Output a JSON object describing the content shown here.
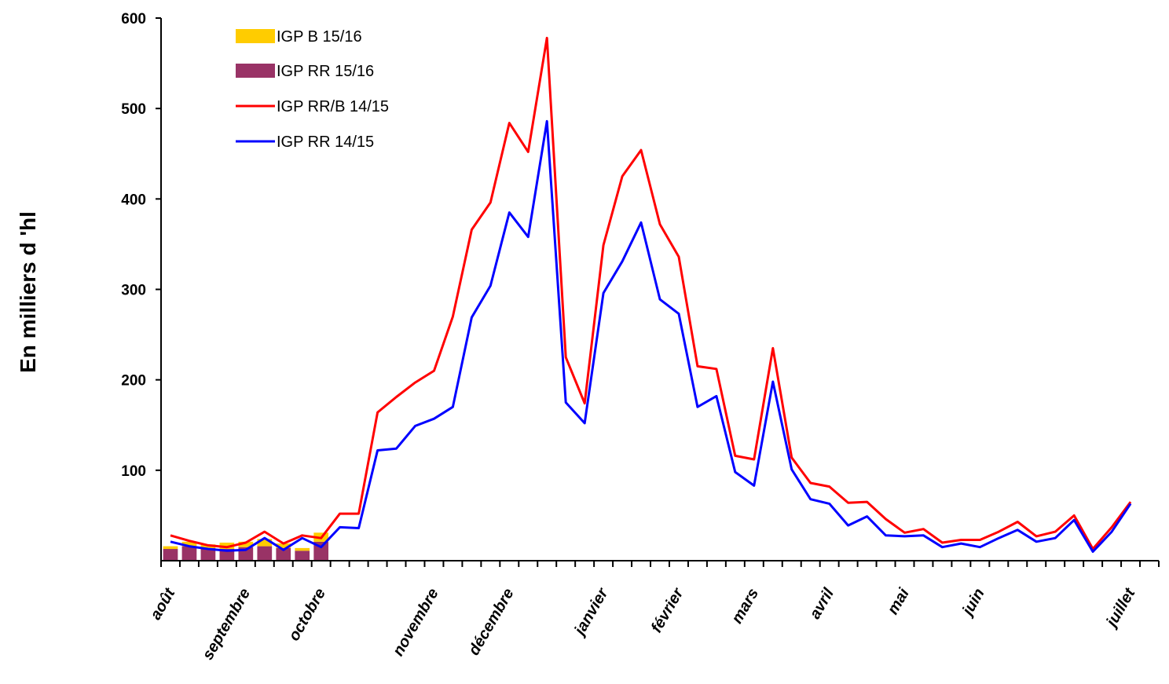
{
  "chart_data": {
    "type": "line",
    "ylabel": "En milliers d 'hl",
    "xlabel": "",
    "ylim": [
      0,
      600
    ],
    "yticks": [
      100,
      200,
      300,
      400,
      500,
      600
    ],
    "grid": false,
    "legend_position": "top-left",
    "weeks": 53,
    "months": [
      {
        "label": "août",
        "week": 0
      },
      {
        "label": "septembre",
        "week": 4
      },
      {
        "label": "octobre",
        "week": 8
      },
      {
        "label": "novembre",
        "week": 14
      },
      {
        "label": "décembre",
        "week": 18
      },
      {
        "label": "janvier",
        "week": 23
      },
      {
        "label": "février",
        "week": 27
      },
      {
        "label": "mars",
        "week": 31
      },
      {
        "label": "avril",
        "week": 35
      },
      {
        "label": "mai",
        "week": 39
      },
      {
        "label": "juin",
        "week": 43
      },
      {
        "label": "juillet",
        "week": 51
      }
    ],
    "bars": {
      "series": [
        {
          "name": "IGP RR 15/16",
          "color": "#993366",
          "values": [
            13,
            16,
            14,
            13,
            15,
            16,
            14,
            11,
            21
          ]
        },
        {
          "name": "IGP B 15/16",
          "color": "#FFCC00",
          "values": [
            3,
            5,
            4,
            7,
            6,
            8,
            5,
            3,
            10
          ]
        }
      ]
    },
    "series": [
      {
        "name": "IGP RR/B 14/15",
        "color": "#FF0000",
        "values": [
          28,
          22,
          17,
          15,
          20,
          32,
          19,
          28,
          25,
          52,
          52,
          164,
          181,
          197,
          210,
          270,
          366,
          396,
          484,
          452,
          578,
          225,
          174,
          349,
          425,
          454,
          372,
          336,
          215,
          212,
          116,
          112,
          235,
          114,
          86,
          82,
          64,
          65,
          46,
          31,
          35,
          20,
          23,
          23,
          32,
          43,
          27,
          32,
          50,
          13,
          37,
          65
        ]
      },
      {
        "name": "IGP RR 14/15",
        "color": "#0000FF",
        "values": [
          21,
          16,
          13,
          11,
          12,
          25,
          12,
          25,
          15,
          37,
          36,
          122,
          124,
          149,
          157,
          170,
          269,
          304,
          385,
          358,
          486,
          175,
          152,
          296,
          331,
          374,
          289,
          273,
          170,
          182,
          98,
          83,
          198,
          101,
          68,
          63,
          39,
          49,
          28,
          27,
          28,
          15,
          19,
          15,
          25,
          34,
          21,
          25,
          45,
          10,
          32,
          63
        ]
      }
    ]
  }
}
